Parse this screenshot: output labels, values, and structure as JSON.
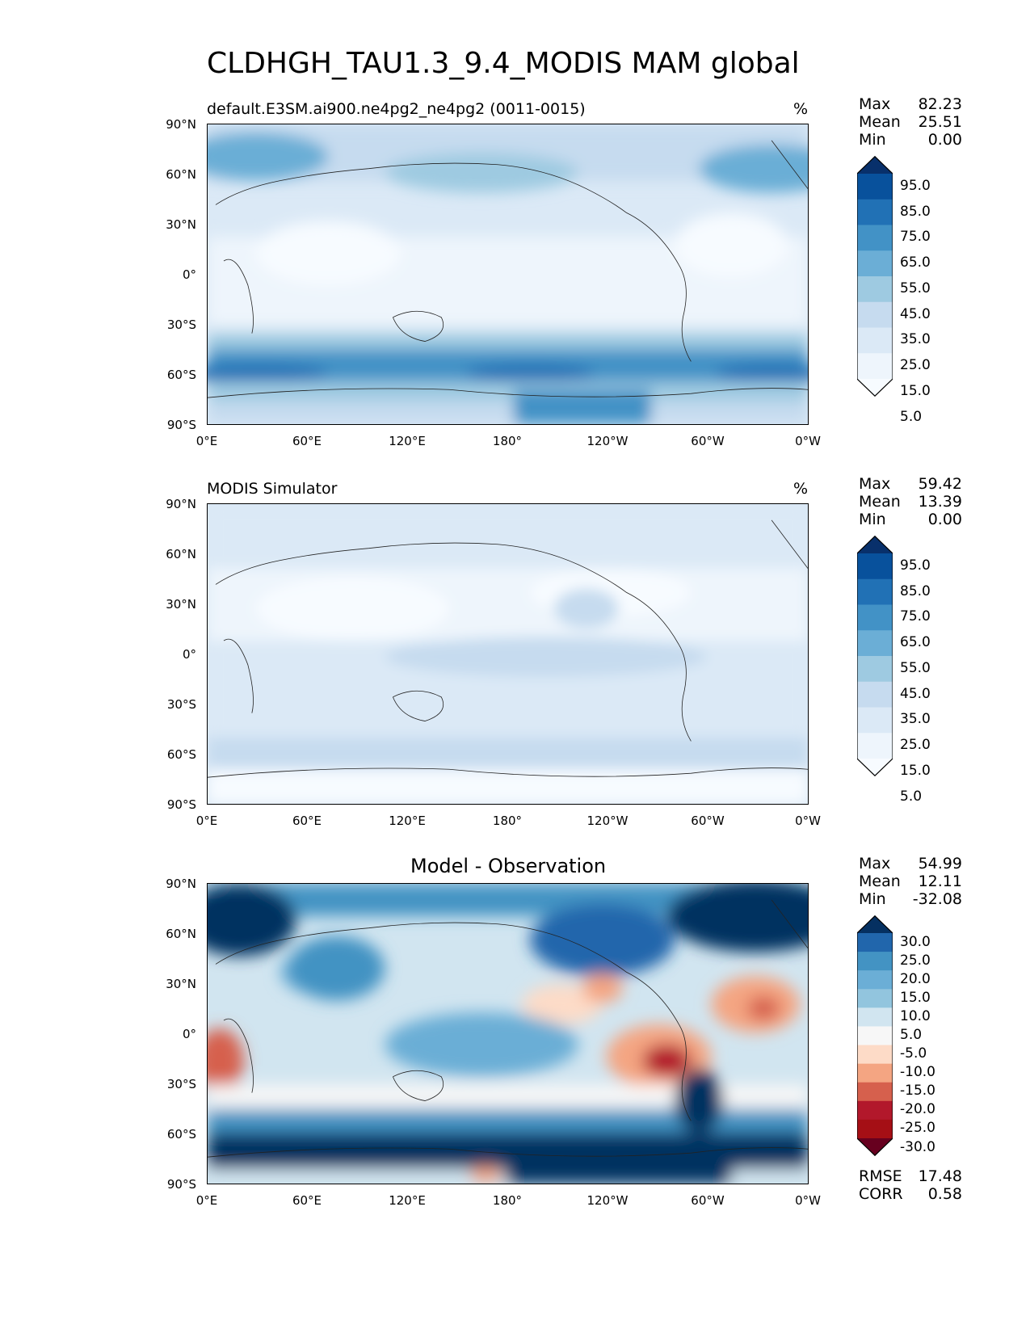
{
  "title": "CLDHGH_TAU1.3_9.4_MODIS MAM global",
  "panels": [
    {
      "id": "model",
      "title": "default.E3SM.ai900.ne4pg2_ne4pg2 (0011-0015)",
      "units": "%",
      "stats": {
        "max_label": "Max",
        "max": "82.23",
        "mean_label": "Mean",
        "mean": "25.51",
        "min_label": "Min",
        "min": "0.00"
      },
      "colorbar": {
        "labels": [
          "95.0",
          "85.0",
          "75.0",
          "65.0",
          "55.0",
          "45.0",
          "35.0",
          "25.0",
          "15.0",
          "5.0"
        ],
        "colors": [
          "#08306b",
          "#08519c",
          "#2171b5",
          "#4292c6",
          "#6baed6",
          "#9ecae1",
          "#c6dbef",
          "#dbe9f6",
          "#eef5fc",
          "#f7fbff"
        ]
      }
    },
    {
      "id": "obs",
      "title": "MODIS Simulator",
      "units": "%",
      "stats": {
        "max_label": "Max",
        "max": "59.42",
        "mean_label": "Mean",
        "mean": "13.39",
        "min_label": "Min",
        "min": "0.00"
      },
      "colorbar": {
        "labels": [
          "95.0",
          "85.0",
          "75.0",
          "65.0",
          "55.0",
          "45.0",
          "35.0",
          "25.0",
          "15.0",
          "5.0"
        ],
        "colors": [
          "#08306b",
          "#08519c",
          "#2171b5",
          "#4292c6",
          "#6baed6",
          "#9ecae1",
          "#c6dbef",
          "#dbe9f6",
          "#eef5fc",
          "#f7fbff"
        ]
      }
    },
    {
      "id": "diff",
      "title": "Model - Observation",
      "units": "",
      "stats": {
        "max_label": "Max",
        "max": "54.99",
        "mean_label": "Mean",
        "mean": "12.11",
        "min_label": "Min",
        "min": "-32.08"
      },
      "colorbar": {
        "labels": [
          "30.0",
          "25.0",
          "20.0",
          "15.0",
          "10.0",
          "5.0",
          "-5.0",
          "-10.0",
          "-15.0",
          "-20.0",
          "-25.0",
          "-30.0"
        ],
        "colors": [
          "#053061",
          "#2166ac",
          "#4393c3",
          "#6baed6",
          "#92c5de",
          "#d1e5f0",
          "#f7f7f7",
          "#fddbc7",
          "#f4a582",
          "#d6604d",
          "#b2182b",
          "#a50f15",
          "#67001f"
        ]
      },
      "metrics": {
        "rmse_label": "RMSE",
        "rmse": "17.48",
        "corr_label": "CORR",
        "corr": "0.58"
      }
    }
  ],
  "axes": {
    "lat_labels": [
      "90°N",
      "60°N",
      "30°N",
      "0°",
      "30°S",
      "60°S",
      "90°S"
    ],
    "lon_labels": [
      "0°E",
      "60°E",
      "120°E",
      "180°",
      "120°W",
      "60°W",
      "0°W"
    ]
  }
}
